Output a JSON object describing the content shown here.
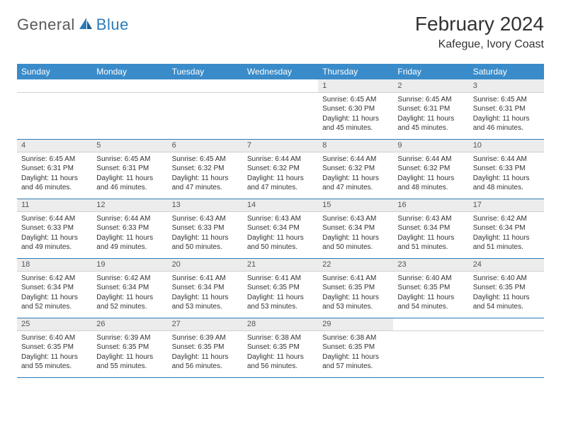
{
  "brand": {
    "text1": "General",
    "text2": "Blue"
  },
  "title": "February 2024",
  "location": "Kafegue, Ivory Coast",
  "colors": {
    "header_bg": "#3a8bc9",
    "header_text": "#ffffff",
    "daynum_bg": "#ececec",
    "rule": "#2b7bb9",
    "body_text": "#333333",
    "logo_gray": "#5a5a5a",
    "logo_blue": "#2b7bb9"
  },
  "typography": {
    "title_fontsize": 28,
    "location_fontsize": 16,
    "dow_fontsize": 12,
    "daynum_fontsize": 11,
    "cell_fontsize": 10
  },
  "days_of_week": [
    "Sunday",
    "Monday",
    "Tuesday",
    "Wednesday",
    "Thursday",
    "Friday",
    "Saturday"
  ],
  "weeks": [
    {
      "nums": [
        "",
        "",
        "",
        "",
        "1",
        "2",
        "3"
      ],
      "sunrise": [
        "",
        "",
        "",
        "",
        "Sunrise: 6:45 AM",
        "Sunrise: 6:45 AM",
        "Sunrise: 6:45 AM"
      ],
      "sunset": [
        "",
        "",
        "",
        "",
        "Sunset: 6:30 PM",
        "Sunset: 6:31 PM",
        "Sunset: 6:31 PM"
      ],
      "day1": [
        "",
        "",
        "",
        "",
        "Daylight: 11 hours",
        "Daylight: 11 hours",
        "Daylight: 11 hours"
      ],
      "day2": [
        "",
        "",
        "",
        "",
        "and 45 minutes.",
        "and 45 minutes.",
        "and 46 minutes."
      ]
    },
    {
      "nums": [
        "4",
        "5",
        "6",
        "7",
        "8",
        "9",
        "10"
      ],
      "sunrise": [
        "Sunrise: 6:45 AM",
        "Sunrise: 6:45 AM",
        "Sunrise: 6:45 AM",
        "Sunrise: 6:44 AM",
        "Sunrise: 6:44 AM",
        "Sunrise: 6:44 AM",
        "Sunrise: 6:44 AM"
      ],
      "sunset": [
        "Sunset: 6:31 PM",
        "Sunset: 6:31 PM",
        "Sunset: 6:32 PM",
        "Sunset: 6:32 PM",
        "Sunset: 6:32 PM",
        "Sunset: 6:32 PM",
        "Sunset: 6:33 PM"
      ],
      "day1": [
        "Daylight: 11 hours",
        "Daylight: 11 hours",
        "Daylight: 11 hours",
        "Daylight: 11 hours",
        "Daylight: 11 hours",
        "Daylight: 11 hours",
        "Daylight: 11 hours"
      ],
      "day2": [
        "and 46 minutes.",
        "and 46 minutes.",
        "and 47 minutes.",
        "and 47 minutes.",
        "and 47 minutes.",
        "and 48 minutes.",
        "and 48 minutes."
      ]
    },
    {
      "nums": [
        "11",
        "12",
        "13",
        "14",
        "15",
        "16",
        "17"
      ],
      "sunrise": [
        "Sunrise: 6:44 AM",
        "Sunrise: 6:44 AM",
        "Sunrise: 6:43 AM",
        "Sunrise: 6:43 AM",
        "Sunrise: 6:43 AM",
        "Sunrise: 6:43 AM",
        "Sunrise: 6:42 AM"
      ],
      "sunset": [
        "Sunset: 6:33 PM",
        "Sunset: 6:33 PM",
        "Sunset: 6:33 PM",
        "Sunset: 6:34 PM",
        "Sunset: 6:34 PM",
        "Sunset: 6:34 PM",
        "Sunset: 6:34 PM"
      ],
      "day1": [
        "Daylight: 11 hours",
        "Daylight: 11 hours",
        "Daylight: 11 hours",
        "Daylight: 11 hours",
        "Daylight: 11 hours",
        "Daylight: 11 hours",
        "Daylight: 11 hours"
      ],
      "day2": [
        "and 49 minutes.",
        "and 49 minutes.",
        "and 50 minutes.",
        "and 50 minutes.",
        "and 50 minutes.",
        "and 51 minutes.",
        "and 51 minutes."
      ]
    },
    {
      "nums": [
        "18",
        "19",
        "20",
        "21",
        "22",
        "23",
        "24"
      ],
      "sunrise": [
        "Sunrise: 6:42 AM",
        "Sunrise: 6:42 AM",
        "Sunrise: 6:41 AM",
        "Sunrise: 6:41 AM",
        "Sunrise: 6:41 AM",
        "Sunrise: 6:40 AM",
        "Sunrise: 6:40 AM"
      ],
      "sunset": [
        "Sunset: 6:34 PM",
        "Sunset: 6:34 PM",
        "Sunset: 6:34 PM",
        "Sunset: 6:35 PM",
        "Sunset: 6:35 PM",
        "Sunset: 6:35 PM",
        "Sunset: 6:35 PM"
      ],
      "day1": [
        "Daylight: 11 hours",
        "Daylight: 11 hours",
        "Daylight: 11 hours",
        "Daylight: 11 hours",
        "Daylight: 11 hours",
        "Daylight: 11 hours",
        "Daylight: 11 hours"
      ],
      "day2": [
        "and 52 minutes.",
        "and 52 minutes.",
        "and 53 minutes.",
        "and 53 minutes.",
        "and 53 minutes.",
        "and 54 minutes.",
        "and 54 minutes."
      ]
    },
    {
      "nums": [
        "25",
        "26",
        "27",
        "28",
        "29",
        "",
        ""
      ],
      "sunrise": [
        "Sunrise: 6:40 AM",
        "Sunrise: 6:39 AM",
        "Sunrise: 6:39 AM",
        "Sunrise: 6:38 AM",
        "Sunrise: 6:38 AM",
        "",
        ""
      ],
      "sunset": [
        "Sunset: 6:35 PM",
        "Sunset: 6:35 PM",
        "Sunset: 6:35 PM",
        "Sunset: 6:35 PM",
        "Sunset: 6:35 PM",
        "",
        ""
      ],
      "day1": [
        "Daylight: 11 hours",
        "Daylight: 11 hours",
        "Daylight: 11 hours",
        "Daylight: 11 hours",
        "Daylight: 11 hours",
        "",
        ""
      ],
      "day2": [
        "and 55 minutes.",
        "and 55 minutes.",
        "and 56 minutes.",
        "and 56 minutes.",
        "and 57 minutes.",
        "",
        ""
      ]
    }
  ]
}
